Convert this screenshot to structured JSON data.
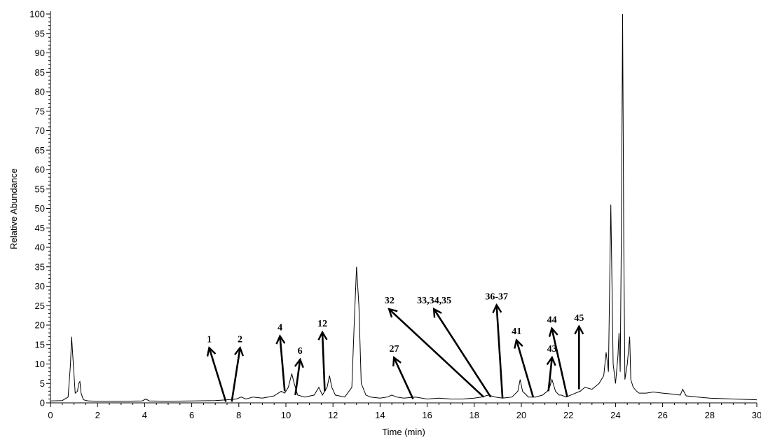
{
  "chart_data": {
    "type": "line",
    "title": "",
    "xlabel": "Time (min)",
    "ylabel": "Relative Abundance",
    "xlim": [
      0,
      30
    ],
    "ylim": [
      0,
      100
    ],
    "x_ticks": [
      0,
      2,
      4,
      6,
      8,
      10,
      12,
      14,
      16,
      18,
      20,
      22,
      24,
      26,
      28,
      30
    ],
    "x_tick_labels": [
      "0",
      "2",
      "4",
      "6",
      "8",
      "10",
      "12",
      "14",
      "16",
      "18",
      "20",
      "22",
      "24",
      "26",
      "28",
      "30"
    ],
    "y_ticks": [
      0,
      5,
      10,
      15,
      20,
      25,
      30,
      35,
      40,
      45,
      50,
      55,
      60,
      65,
      70,
      75,
      80,
      85,
      90,
      95,
      100
    ],
    "y_tick_labels": [
      "0",
      "5",
      "10",
      "15",
      "20",
      "25",
      "30",
      "35",
      "40",
      "45",
      "50",
      "55",
      "60",
      "65",
      "70",
      "75",
      "80",
      "85",
      "90",
      "95",
      "100"
    ],
    "grid": false,
    "legend": "none",
    "line_color": "#000000",
    "series": [
      {
        "x": [
          0,
          0.5,
          0.75,
          0.85,
          0.9,
          0.95,
          1.05,
          1.15,
          1.2,
          1.25,
          1.3,
          1.4,
          1.6,
          2.0,
          3.0,
          3.9,
          4.05,
          4.2,
          5.0,
          6.0,
          7.0,
          7.5,
          7.9,
          8.1,
          8.3,
          8.6,
          9.0,
          9.5,
          9.8,
          9.95,
          10.1,
          10.25,
          10.35,
          10.5,
          10.8,
          11.2,
          11.4,
          11.55,
          11.65,
          11.75,
          11.85,
          11.95,
          12.1,
          12.5,
          12.8,
          12.9,
          13.0,
          13.1,
          13.2,
          13.4,
          13.6,
          14.0,
          14.3,
          14.5,
          14.7,
          15.0,
          15.5,
          16.0,
          16.5,
          17.0,
          17.5,
          18.0,
          18.3,
          18.6,
          18.9,
          19.2,
          19.6,
          19.85,
          19.95,
          20.05,
          20.3,
          20.6,
          20.9,
          21.1,
          21.2,
          21.3,
          21.45,
          21.6,
          21.7,
          21.9,
          22.1,
          22.3,
          22.5,
          22.7,
          23.0,
          23.3,
          23.5,
          23.6,
          23.7,
          23.75,
          23.8,
          23.9,
          24.0,
          24.1,
          24.15,
          24.2,
          24.25,
          24.3,
          24.35,
          24.4,
          24.5,
          24.6,
          24.65,
          24.75,
          24.9,
          25.0,
          25.3,
          25.6,
          26.0,
          26.5,
          26.75,
          26.85,
          27.0,
          27.5,
          28.0,
          29.0,
          30.0
        ],
        "y": [
          0.5,
          0.6,
          1.5,
          10,
          17,
          12,
          2.5,
          3,
          5,
          5.5,
          2.5,
          0.8,
          0.5,
          0.4,
          0.4,
          0.5,
          1,
          0.5,
          0.4,
          0.5,
          0.6,
          0.8,
          1,
          1.5,
          1,
          1.5,
          1.2,
          1.8,
          3,
          2.5,
          4,
          7.5,
          5,
          2,
          1.5,
          2,
          4,
          2,
          3,
          4,
          7,
          4,
          2,
          1.5,
          4,
          20,
          35,
          25,
          5,
          2,
          1.5,
          1.2,
          1.5,
          2,
          1.5,
          1.2,
          1.5,
          1,
          1.2,
          1,
          1,
          1.2,
          1.5,
          2,
          1.5,
          1.2,
          1.5,
          3,
          6,
          3,
          1.5,
          1.5,
          2,
          3,
          4,
          6,
          3,
          2,
          2,
          1.5,
          2,
          2.5,
          3,
          4,
          3.5,
          5,
          7,
          13,
          8,
          30,
          51,
          10,
          5,
          12,
          18,
          8,
          45,
          100,
          40,
          6,
          10,
          17,
          6,
          4,
          3,
          2.5,
          2.5,
          2.8,
          2.5,
          2.2,
          2,
          3.5,
          1.8,
          1.5,
          1.2,
          1,
          0.8
        ]
      }
    ],
    "annotations": [
      {
        "label": "1",
        "tip": [
          6.75,
          14
        ],
        "tail": [
          7.45,
          0.3
        ]
      },
      {
        "label": "2",
        "tip": [
          8.05,
          14
        ],
        "tail": [
          7.7,
          0.3
        ]
      },
      {
        "label": "4",
        "tip": [
          9.75,
          17
        ],
        "tail": [
          9.95,
          3
        ]
      },
      {
        "label": "6",
        "tip": [
          10.6,
          11
        ],
        "tail": [
          10.4,
          2
        ]
      },
      {
        "label": "12",
        "tip": [
          11.55,
          18
        ],
        "tail": [
          11.65,
          3
        ]
      },
      {
        "label": "27",
        "tip": [
          14.6,
          11.5
        ],
        "tail": [
          15.4,
          1
        ]
      },
      {
        "label": "32",
        "tip": [
          14.4,
          24
        ],
        "tail": [
          18.4,
          1.5
        ]
      },
      {
        "label": "33,34,35",
        "tip": [
          16.3,
          24
        ],
        "tail": [
          18.7,
          1.5
        ]
      },
      {
        "label": "36-37",
        "tip": [
          18.95,
          25
        ],
        "tail": [
          19.2,
          1.2
        ]
      },
      {
        "label": "41",
        "tip": [
          19.8,
          16
        ],
        "tail": [
          20.5,
          1.5
        ]
      },
      {
        "label": "43",
        "tip": [
          21.3,
          11.5
        ],
        "tail": [
          21.15,
          3
        ]
      },
      {
        "label": "44",
        "tip": [
          21.3,
          19
        ],
        "tail": [
          21.95,
          1.5
        ]
      },
      {
        "label": "45",
        "tip": [
          22.45,
          19.5
        ],
        "tail": [
          22.45,
          3.5
        ]
      }
    ]
  }
}
